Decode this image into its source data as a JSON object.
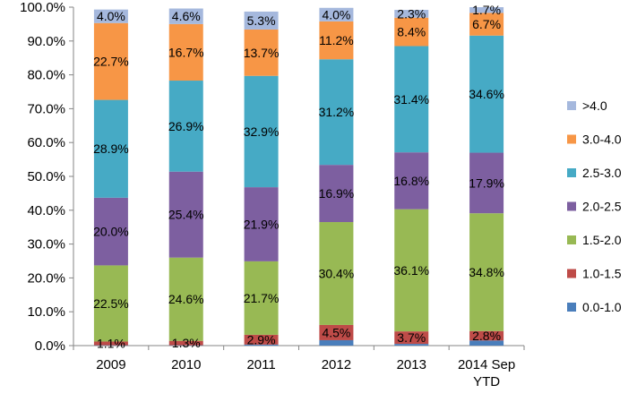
{
  "chart_data": {
    "type": "bar",
    "stacked": true,
    "title": "",
    "xlabel": "",
    "ylabel": "",
    "ylim": [
      0,
      100
    ],
    "y_tick_labels": [
      "0.0%",
      "10.0%",
      "20.0%",
      "30.0%",
      "40.0%",
      "50.0%",
      "60.0%",
      "70.0%",
      "80.0%",
      "90.0%",
      "100.0%"
    ],
    "grid": false,
    "legend_position": "right",
    "categories": [
      [
        "2009"
      ],
      [
        "2010"
      ],
      [
        "2011"
      ],
      [
        "2012"
      ],
      [
        "2013"
      ],
      [
        "2014 Sep",
        "YTD"
      ]
    ],
    "series": [
      {
        "name": "0.0-1.0",
        "color": "#4a7ebb",
        "values": [
          0.1,
          0.1,
          0.3,
          1.6,
          0.5,
          1.5
        ],
        "labels": [
          "",
          "",
          "",
          "",
          "",
          ""
        ]
      },
      {
        "name": "1.0-1.5",
        "color": "#be4b48",
        "values": [
          1.1,
          1.3,
          2.9,
          4.5,
          3.7,
          2.8
        ],
        "labels": [
          "1.1%",
          "1.3%",
          "2.9%",
          "4.5%",
          "3.7%",
          "2.8%"
        ]
      },
      {
        "name": "1.5-2.0",
        "color": "#98b954",
        "values": [
          22.5,
          24.6,
          21.7,
          30.4,
          36.1,
          34.8
        ],
        "labels": [
          "22.5%",
          "24.6%",
          "21.7%",
          "30.4%",
          "36.1%",
          "34.8%"
        ]
      },
      {
        "name": "2.0-2.5",
        "color": "#7d5fa0",
        "values": [
          20.0,
          25.4,
          21.9,
          16.9,
          16.8,
          17.9
        ],
        "labels": [
          "20.0%",
          "25.4%",
          "21.9%",
          "16.9%",
          "16.8%",
          "17.9%"
        ]
      },
      {
        "name": "2.5-3.0",
        "color": "#46aac5",
        "values": [
          28.9,
          26.9,
          32.9,
          31.2,
          31.4,
          34.6
        ],
        "labels": [
          "28.9%",
          "26.9%",
          "32.9%",
          "31.2%",
          "31.4%",
          "34.6%"
        ]
      },
      {
        "name": "3.0-4.0",
        "color": "#f79646",
        "values": [
          22.7,
          16.7,
          13.7,
          11.2,
          8.4,
          6.7
        ],
        "labels": [
          "22.7%",
          "16.7%",
          "13.7%",
          "11.2%",
          "8.4%",
          "6.7%"
        ]
      },
      {
        "name": ">4.0",
        "color": "#a5b8dd",
        "values": [
          4.0,
          4.6,
          5.3,
          4.0,
          2.3,
          1.7
        ],
        "labels": [
          "4.0%",
          "4.6%",
          "5.3%",
          "4.0%",
          "2.3%",
          "1.7%"
        ]
      }
    ]
  }
}
